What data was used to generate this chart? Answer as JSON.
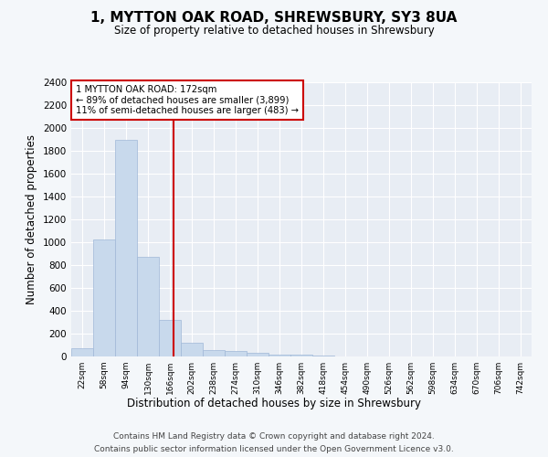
{
  "title": "1, MYTTON OAK ROAD, SHREWSBURY, SY3 8UA",
  "subtitle": "Size of property relative to detached houses in Shrewsbury",
  "xlabel": "Distribution of detached houses by size in Shrewsbury",
  "ylabel": "Number of detached properties",
  "bar_color": "#c8d9ec",
  "bar_edge_color": "#a0b8d8",
  "bin_labels": [
    "22sqm",
    "58sqm",
    "94sqm",
    "130sqm",
    "166sqm",
    "202sqm",
    "238sqm",
    "274sqm",
    "310sqm",
    "346sqm",
    "382sqm",
    "418sqm",
    "454sqm",
    "490sqm",
    "526sqm",
    "562sqm",
    "598sqm",
    "634sqm",
    "670sqm",
    "706sqm",
    "742sqm"
  ],
  "bar_heights": [
    75,
    1025,
    1900,
    875,
    320,
    120,
    55,
    45,
    30,
    15,
    15,
    5,
    0,
    0,
    0,
    0,
    0,
    0,
    0,
    0,
    0
  ],
  "vline_color": "#cc0000",
  "annotation_text": "1 MYTTON OAK ROAD: 172sqm\n← 89% of detached houses are smaller (3,899)\n11% of semi-detached houses are larger (483) →",
  "annotation_box_color": "#cc0000",
  "ylim": [
    0,
    2400
  ],
  "yticks": [
    0,
    200,
    400,
    600,
    800,
    1000,
    1200,
    1400,
    1600,
    1800,
    2000,
    2200,
    2400
  ],
  "footer_line1": "Contains HM Land Registry data © Crown copyright and database right 2024.",
  "footer_line2": "Contains public sector information licensed under the Open Government Licence v3.0.",
  "bg_color": "#f4f7fa",
  "plot_bg_color": "#e8edf4"
}
